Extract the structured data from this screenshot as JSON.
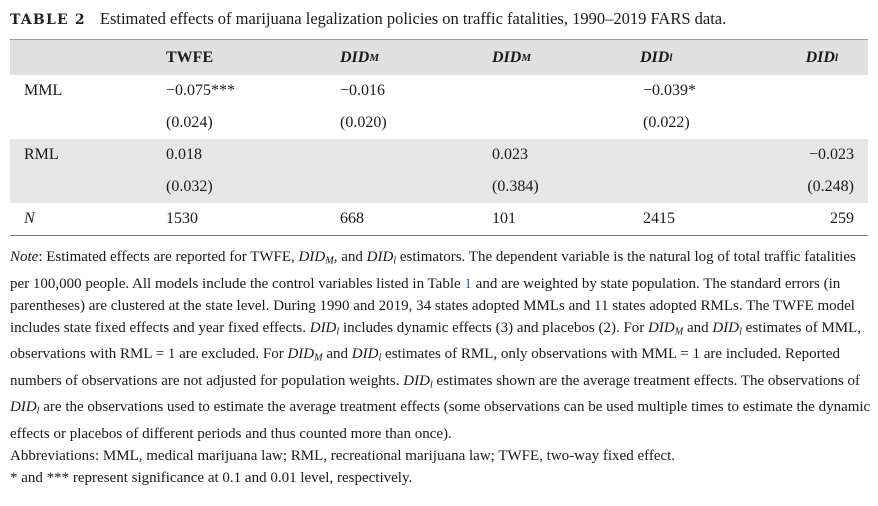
{
  "caption": {
    "label": "TABLE 2",
    "title": "Estimated effects of marijuana legalization policies on traffic fatalities, 1990–2019 FARS data."
  },
  "table": {
    "headers": [
      {
        "base": "TWFE",
        "sub": ""
      },
      {
        "base": "DID",
        "sub": "M"
      },
      {
        "base": "DID",
        "sub": "M"
      },
      {
        "base": "DID",
        "sub": "l"
      },
      {
        "base": "DID",
        "sub": "l"
      }
    ],
    "rows": [
      {
        "label": "MML",
        "cells": [
          "−0.075***",
          "−0.016",
          "",
          "−0.039*",
          ""
        ]
      },
      {
        "label": "",
        "cells": [
          "(0.024)",
          "(0.020)",
          "",
          "(0.022)",
          ""
        ]
      },
      {
        "label": "RML",
        "cells": [
          "0.018",
          "",
          "0.023",
          "",
          "−0.023"
        ]
      },
      {
        "label": "",
        "cells": [
          "(0.032)",
          "",
          "(0.384)",
          "",
          "(0.248)"
        ]
      },
      {
        "label": "N",
        "cells": [
          "1530",
          "668",
          "101",
          "2415",
          "259"
        ]
      }
    ]
  },
  "note": {
    "intro": "Note",
    "p1_a": ": Estimated effects are reported for TWFE, ",
    "did": "DID",
    "sub_m": "M",
    "sub_l": "l",
    "p1_b": ", and ",
    "p1_c": " estimators. The dependent variable is the natural log of total traffic fatalities per 100,000 people. All models include the control variables listed in Table ",
    "table_ref": "1",
    "p1_d": " and are weighted by state population. The standard errors (in parentheses) are clustered at the state level. During 1990 and 2019, 34 states adopted MMLs and 11 states adopted RMLs. The TWFE model includes state fixed effects and year fixed effects. ",
    "p1_e": " includes dynamic effects (3) and placebos (2). For ",
    "p1_f": " and ",
    "p1_g": " estimates of MML, observations with RML = 1 are excluded. For ",
    "p1_h": " and ",
    "p1_i": " estimates of RML, only observations with MML = 1 are included. Reported numbers of observations are not adjusted for population weights. ",
    "p1_j": " estimates shown are the average treatment effects. The observations of ",
    "p1_k": " are the observations used to estimate the average treatment effects (some observations can be used multiple times to estimate the dynamic effects or placebos of different periods and thus counted more than once).",
    "abbrev": "Abbreviations: MML, medical marijuana law; RML, recreational marijuana law; TWFE, two-way fixed effect.",
    "sig": "* and *** represent significance at 0.1 and 0.01 level, respectively."
  },
  "colors": {
    "header_bg": "#e0e0e0",
    "shade_bg": "#e6e6e6",
    "link": "#2a5bd7"
  }
}
